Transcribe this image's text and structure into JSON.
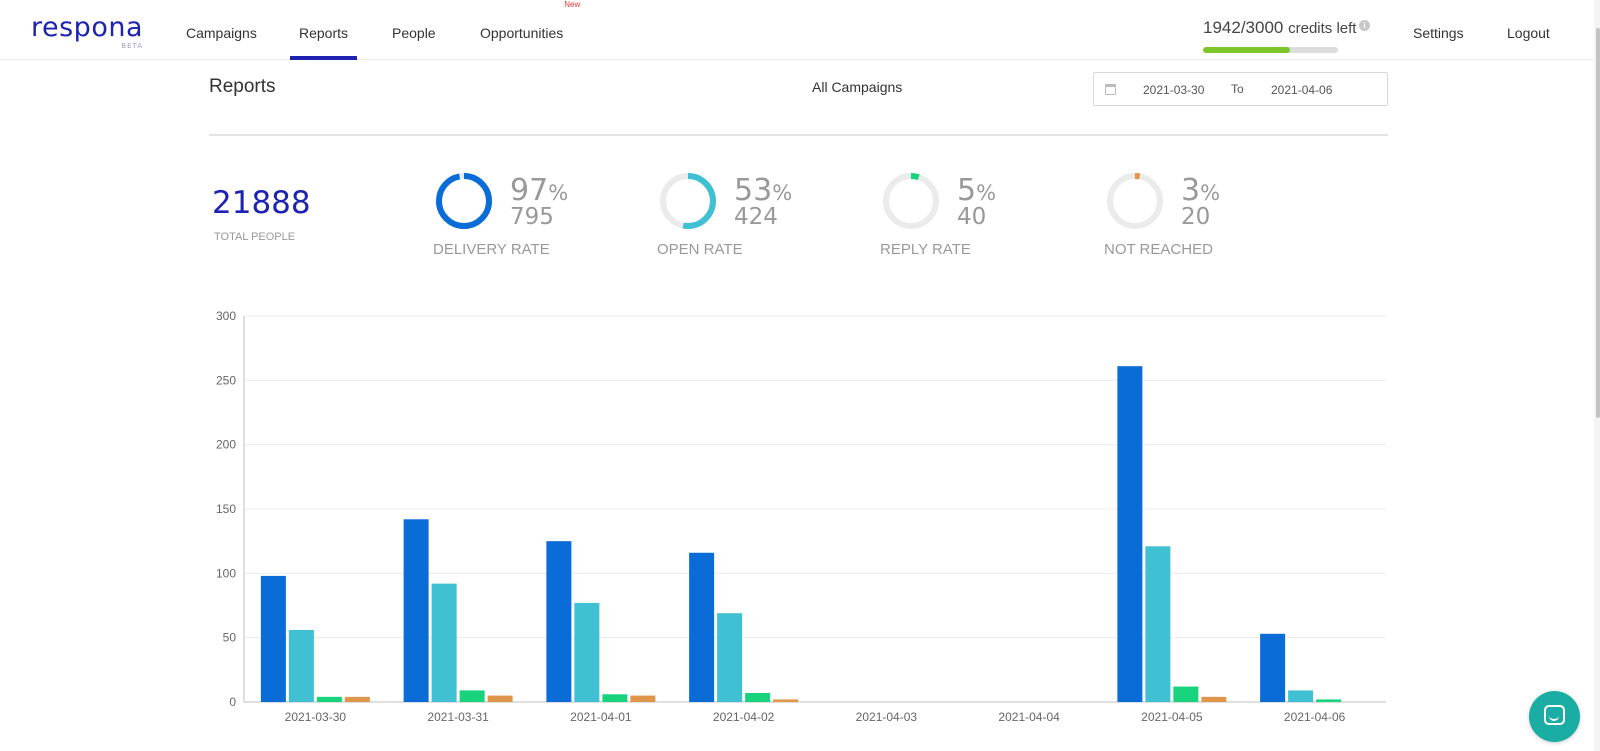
{
  "app": {
    "logo_text": "respona",
    "logo_badge": "BETA"
  },
  "nav": {
    "items": [
      {
        "label": "Campaigns"
      },
      {
        "label": "Reports",
        "active": true
      },
      {
        "label": "People"
      },
      {
        "label": "Opportunities",
        "badge": "New"
      }
    ],
    "credits_value": "1942/3000",
    "credits_suffix": "credits left",
    "credits_used": 1942,
    "credits_total": 3000,
    "settings_label": "Settings",
    "logout_label": "Logout"
  },
  "header": {
    "title": "Reports",
    "campaign_filter": "All Campaigns",
    "date_from": "2021-03-30",
    "date_to_label": "To",
    "date_to": "2021-04-06"
  },
  "stats": {
    "total_people": "21888",
    "total_people_label": "TOTAL PEOPLE",
    "items": [
      {
        "pct": "97",
        "count": "795",
        "label": "DELIVERY RATE",
        "fraction": 0.97,
        "color": "#0a6cd6"
      },
      {
        "pct": "53",
        "count": "424",
        "label": "OPEN RATE",
        "fraction": 0.53,
        "color": "#3fc1d3"
      },
      {
        "pct": "5",
        "count": "40",
        "label": "REPLY RATE",
        "fraction": 0.05,
        "color": "#17d47c"
      },
      {
        "pct": "3",
        "count": "20",
        "label": "NOT REACHED",
        "fraction": 0.03,
        "color": "#e0964a"
      }
    ],
    "percent_sign": "%"
  },
  "chart_data": {
    "type": "bar",
    "categories": [
      "2021-03-30",
      "2021-03-31",
      "2021-04-01",
      "2021-04-02",
      "2021-04-03",
      "2021-04-04",
      "2021-04-05",
      "2021-04-06"
    ],
    "series": [
      {
        "color": "#0a6cd6",
        "values": [
          98,
          142,
          125,
          116,
          0,
          0,
          261,
          53
        ]
      },
      {
        "color": "#3fc1d3",
        "values": [
          56,
          92,
          77,
          69,
          0,
          0,
          121,
          9
        ]
      },
      {
        "color": "#17d47c",
        "values": [
          4,
          9,
          6,
          7,
          0,
          0,
          12,
          2
        ]
      },
      {
        "color": "#e0964a",
        "values": [
          4,
          5,
          5,
          2,
          0,
          0,
          4,
          0
        ]
      }
    ],
    "yticks": [
      0,
      50,
      100,
      150,
      200,
      250,
      300
    ],
    "ylim": [
      0,
      300
    ],
    "grid": true,
    "legend": "none",
    "title": "",
    "xlabel": "",
    "ylabel": ""
  }
}
